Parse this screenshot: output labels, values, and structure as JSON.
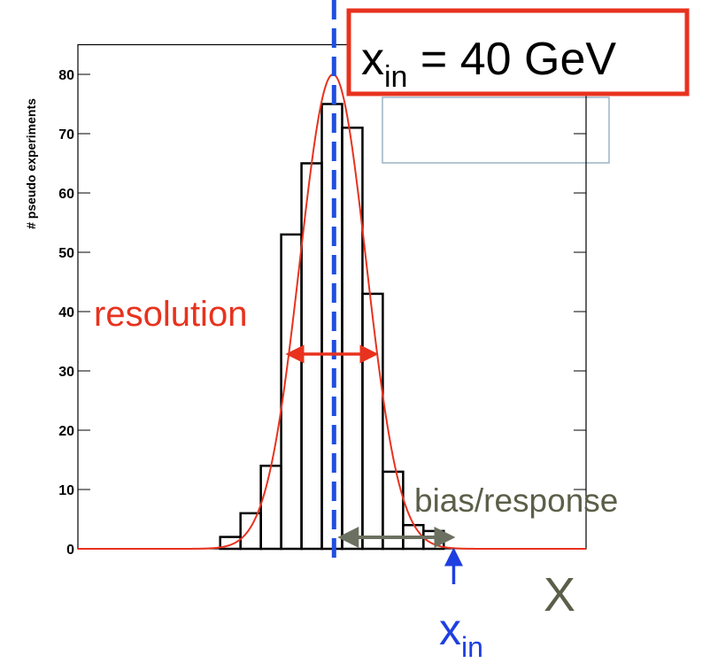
{
  "chart_data": {
    "type": "histogram",
    "y_label": "# pseudo experiments",
    "bins": [
      7,
      8,
      9,
      10,
      11,
      12,
      13,
      14,
      15,
      16,
      17,
      18
    ],
    "counts": [
      2,
      6,
      14,
      53,
      65,
      75,
      71,
      43,
      13,
      4,
      3
    ],
    "color": "#000000",
    "fit": {
      "amplitude": 80,
      "mean": 12.55,
      "sigma": 1.63,
      "color": "#e8321e"
    },
    "xlim": [
      0,
      25
    ],
    "ylim": [
      0,
      85
    ],
    "yticks": [
      0,
      10,
      20,
      30,
      40,
      50,
      60,
      70,
      80
    ],
    "mean_line": {
      "x": 12.6,
      "color": "#1f4fe0"
    },
    "x_in": 18.4,
    "annotations": {
      "box": {
        "main": "x",
        "sub": "in",
        "rest": " = 40 GeV"
      },
      "resolution": "resolution",
      "bias": "bias/response",
      "axis_x": "X",
      "x_in_label": {
        "main": "x",
        "sub": "in"
      }
    }
  }
}
